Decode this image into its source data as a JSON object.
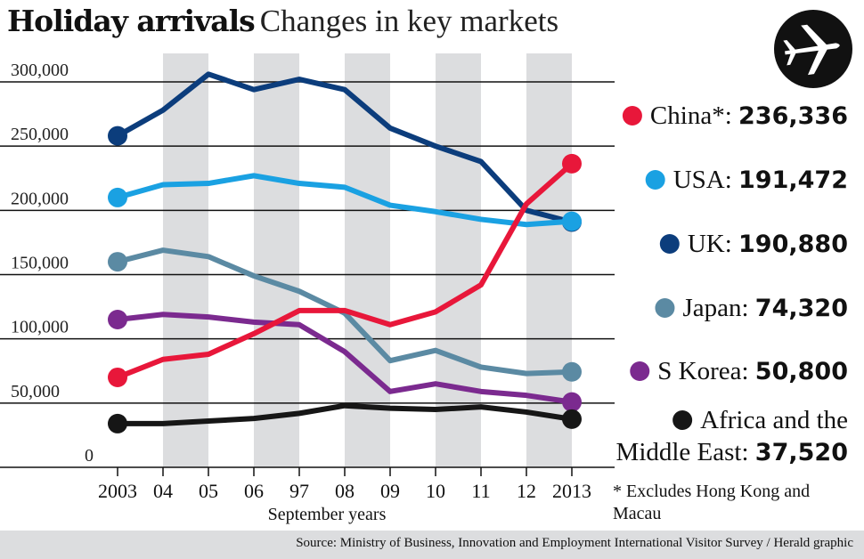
{
  "title": "Holiday arrivals",
  "subtitle": "Changes in key markets",
  "footnote": "* Excludes Hong Kong and Macau",
  "source": "Source:  Ministry of Business, Innovation and Employment International Visitor Survey / Herald graphic",
  "icon": "airplane-icon",
  "colors": {
    "china": "#e8173a",
    "usa": "#1aa1e2",
    "uk": "#0c3d7c",
    "japan": "#5b8aa3",
    "skorea": "#7b2a8f",
    "africa": "#161616",
    "band": "#dcdddf"
  },
  "chart_data": {
    "type": "line",
    "xlabel": "September years",
    "ylabel": "",
    "categories": [
      "2003",
      "04",
      "05",
      "06",
      "97",
      "08",
      "09",
      "10",
      "11",
      "12",
      "2013"
    ],
    "ylim": [
      0,
      300000
    ],
    "yticks": [
      0,
      50000,
      100000,
      150000,
      200000,
      250000,
      300000
    ],
    "ytick_labels": [
      "0",
      "50,000",
      "100,000",
      "150,000",
      "200,000",
      "250,000",
      "300,000"
    ],
    "shaded_bands": [
      "04-05",
      "06-97",
      "08-09",
      "10-11",
      "12-2013"
    ],
    "legend_placement": "right",
    "series": [
      {
        "key": "uk",
        "name": "UK",
        "value_label": "190,880",
        "values": [
          258000,
          278000,
          306000,
          294000,
          302000,
          294000,
          264000,
          250000,
          238000,
          200000,
          190880
        ]
      },
      {
        "key": "usa",
        "name": "USA",
        "value_label": "191,472",
        "values": [
          210000,
          220000,
          221000,
          227000,
          221000,
          218000,
          204000,
          199000,
          193000,
          189000,
          191472
        ]
      },
      {
        "key": "japan",
        "name": "Japan",
        "value_label": "74,320",
        "values": [
          160000,
          169000,
          164000,
          149000,
          137000,
          120000,
          83000,
          91000,
          78000,
          73000,
          74320
        ]
      },
      {
        "key": "skorea",
        "name": "S Korea",
        "value_label": "50,800",
        "values": [
          115000,
          119000,
          117000,
          113000,
          111000,
          90000,
          59000,
          65000,
          59000,
          56000,
          50800
        ]
      },
      {
        "key": "china",
        "name": "China*",
        "value_label": "236,336",
        "values": [
          70000,
          84000,
          88000,
          104000,
          122000,
          122000,
          111000,
          121000,
          142000,
          205000,
          236336
        ]
      },
      {
        "key": "africa",
        "name": "Africa and the Middle East",
        "value_label": "37,520",
        "values": [
          34000,
          34000,
          36000,
          38000,
          42000,
          48000,
          46000,
          45000,
          47000,
          43000,
          37520
        ]
      }
    ]
  }
}
